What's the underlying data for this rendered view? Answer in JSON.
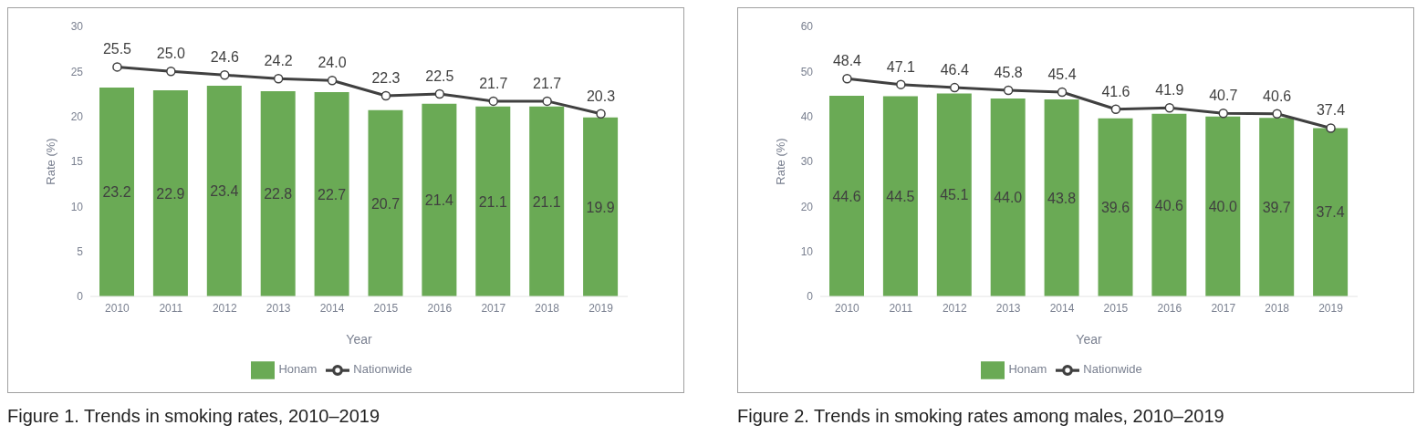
{
  "chart_data": [
    {
      "type": "bar",
      "title": "Figure 1. Trends in smoking rates, 2010–2019",
      "xlabel": "Year",
      "ylabel": "Rate (%)",
      "categories": [
        "2010",
        "2011",
        "2012",
        "2013",
        "2014",
        "2015",
        "2016",
        "2017",
        "2018",
        "2019"
      ],
      "series": [
        {
          "name": "Honam",
          "color": "#6aaa55",
          "values": [
            23.2,
            22.9,
            23.4,
            22.8,
            22.7,
            20.7,
            21.4,
            21.1,
            21.1,
            19.9
          ],
          "value_labels": [
            "23.2",
            "22.9",
            "23.4",
            "22.8",
            "22.7",
            "20.7",
            "21.4",
            "21.1",
            "21.1",
            "19.9"
          ]
        },
        {
          "name": "Nationwide",
          "type": "line",
          "color": "#404040",
          "values": [
            25.5,
            25.0,
            24.6,
            24.2,
            24.0,
            22.3,
            22.5,
            21.7,
            21.7,
            20.3
          ],
          "value_labels": [
            "25.5",
            "25.0",
            "24.6",
            "24.2",
            "24.0",
            "22.3",
            "22.5",
            "21.7",
            "21.7",
            "20.3"
          ]
        }
      ],
      "ylim": [
        0,
        30
      ],
      "yticks": [
        0,
        5,
        10,
        15,
        20,
        25,
        30
      ],
      "grid": false,
      "legend": "bottom",
      "marker": "circle"
    },
    {
      "type": "bar",
      "title": "Figure 2. Trends in smoking rates among males, 2010–2019",
      "xlabel": "Year",
      "ylabel": "Rate (%)",
      "categories": [
        "2010",
        "2011",
        "2012",
        "2013",
        "2014",
        "2015",
        "2016",
        "2017",
        "2018",
        "2019"
      ],
      "series": [
        {
          "name": "Honam",
          "color": "#6aaa55",
          "values": [
            44.6,
            44.5,
            45.1,
            44.0,
            43.8,
            39.6,
            40.6,
            40.0,
            39.7,
            37.4
          ],
          "value_labels": [
            "44.6",
            "44.5",
            "45.1",
            "44.0",
            "43.8",
            "39.6",
            "40.6",
            "40.0",
            "39.7",
            "37.4"
          ]
        },
        {
          "name": "Nationwide",
          "type": "line",
          "color": "#404040",
          "values": [
            48.4,
            47.1,
            46.4,
            45.8,
            45.4,
            41.6,
            41.9,
            40.7,
            40.6,
            37.4
          ],
          "value_labels": [
            "48.4",
            "47.1",
            "46.4",
            "45.8",
            "45.4",
            "41.6",
            "41.9",
            "40.7",
            "40.6",
            "37.4"
          ]
        }
      ],
      "ylim": [
        0,
        60
      ],
      "yticks": [
        0,
        10,
        20,
        30,
        40,
        50,
        60
      ],
      "grid": false,
      "legend": "bottom",
      "marker": "circle"
    }
  ]
}
